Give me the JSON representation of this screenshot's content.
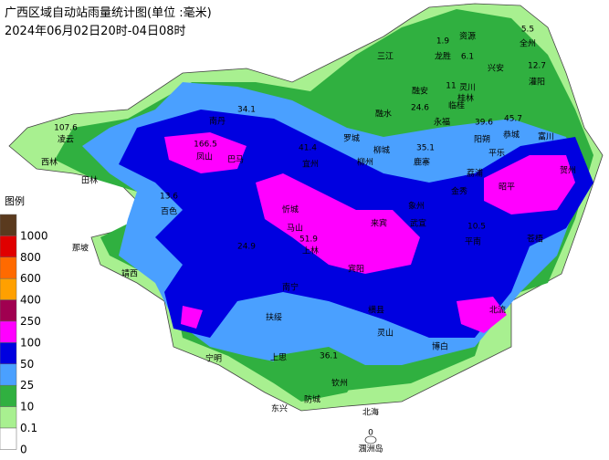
{
  "header": {
    "title": "广西区域自动站雨量统计图(单位 :毫米)",
    "subtitle": "2024年06月02日20时-04日08时"
  },
  "legend": {
    "title": "图例",
    "items": [
      {
        "label": "1000",
        "color": "#5a3a1e"
      },
      {
        "label": "800",
        "color": "#e00000"
      },
      {
        "label": "600",
        "color": "#ff6a00"
      },
      {
        "label": "400",
        "color": "#ffa000"
      },
      {
        "label": "250",
        "color": "#a00050"
      },
      {
        "label": "100",
        "color": "#ff00ff"
      },
      {
        "label": "50",
        "color": "#0000e0"
      },
      {
        "label": "25",
        "color": "#4aa0ff"
      },
      {
        "label": "10",
        "color": "#30b040"
      },
      {
        "label": "0.1",
        "color": "#a8f090"
      },
      {
        "label": "0",
        "color": "#ffffff"
      }
    ]
  },
  "places": [
    "1.9",
    "资源",
    "5.5",
    "全州",
    "三江",
    "龙胜",
    "6.1",
    "兴安",
    "12.7",
    "灌阳",
    "融安",
    "11",
    "灵川",
    "桂林",
    "临桂",
    "34.1",
    "南丹",
    "融水",
    "24.6",
    "永福",
    "39.6",
    "45.7",
    "107.6",
    "凌云",
    "166.5",
    "罗城",
    "阳朔",
    "恭城",
    "富川",
    "柳城",
    "41.4",
    "35.1",
    "平乐",
    "西林",
    "凤山",
    "巴马",
    "宜州",
    "柳州",
    "鹿寨",
    "荔浦",
    "贺州",
    "田林",
    "昭平",
    "13.6",
    "百色",
    "象州",
    "金秀",
    "忻城",
    "武宣",
    "10.5",
    "马山",
    "来宾",
    "平南",
    "那坡",
    "51.9",
    "上林",
    "24.9",
    "苍梧",
    "宾阳",
    "靖西",
    "南宁",
    "横县",
    "北流",
    "扶绥",
    "灵山",
    "博白",
    "宁明",
    "上思",
    "36.1",
    "钦州",
    "防城",
    "东兴",
    "北海",
    "0",
    "涠洲岛"
  ]
}
